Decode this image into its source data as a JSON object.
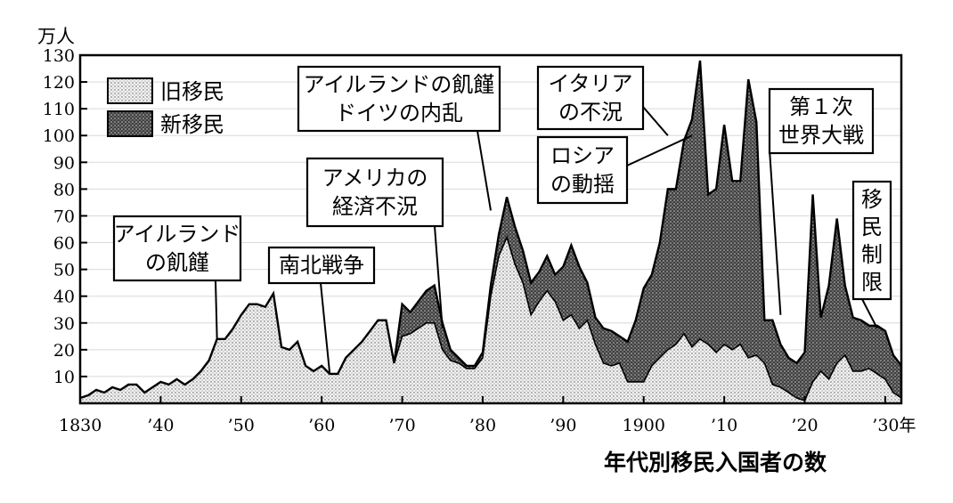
{
  "chart_data": {
    "type": "area",
    "ylabel": "万人",
    "caption": "年代別移民入国者の数",
    "ylim": [
      0,
      130
    ],
    "yticks": [
      10,
      20,
      30,
      40,
      50,
      60,
      70,
      80,
      90,
      100,
      110,
      120,
      130
    ],
    "xlim": [
      1830,
      1932
    ],
    "xticks": [
      {
        "year": 1830,
        "label": "1830"
      },
      {
        "year": 1840,
        "label": "’40"
      },
      {
        "year": 1850,
        "label": "’50"
      },
      {
        "year": 1860,
        "label": "’60"
      },
      {
        "year": 1870,
        "label": "’70"
      },
      {
        "year": 1880,
        "label": "’80"
      },
      {
        "year": 1890,
        "label": "’90"
      },
      {
        "year": 1900,
        "label": "1900"
      },
      {
        "year": 1910,
        "label": "’10"
      },
      {
        "year": 1920,
        "label": "’20"
      },
      {
        "year": 1930,
        "label": "’30年"
      }
    ],
    "grid": true,
    "legend": {
      "placement": "top-left",
      "entries": [
        {
          "name": "旧移民",
          "pattern": "light-dots"
        },
        {
          "name": "新移民",
          "pattern": "dark-dots"
        }
      ]
    },
    "series": [
      {
        "name": "旧移民",
        "x": [
          1830,
          1831,
          1832,
          1833,
          1834,
          1835,
          1836,
          1837,
          1838,
          1839,
          1840,
          1841,
          1842,
          1843,
          1844,
          1845,
          1846,
          1847,
          1848,
          1849,
          1850,
          1851,
          1852,
          1853,
          1854,
          1855,
          1856,
          1857,
          1858,
          1859,
          1860,
          1861,
          1862,
          1863,
          1864,
          1865,
          1866,
          1867,
          1868,
          1869,
          1870,
          1871,
          1872,
          1873,
          1874,
          1875,
          1876,
          1877,
          1878,
          1879,
          1880,
          1881,
          1882,
          1883,
          1884,
          1885,
          1886,
          1887,
          1888,
          1889,
          1890,
          1891,
          1892,
          1893,
          1894,
          1895,
          1896,
          1897,
          1898,
          1899,
          1900,
          1901,
          1902,
          1903,
          1904,
          1905,
          1906,
          1907,
          1908,
          1909,
          1910,
          1911,
          1912,
          1913,
          1914,
          1915,
          1916,
          1917,
          1918,
          1919,
          1920,
          1921,
          1922,
          1923,
          1924,
          1925,
          1926,
          1927,
          1928,
          1929,
          1930,
          1931,
          1932
        ],
        "values": [
          2,
          3,
          5,
          4,
          6,
          5,
          7,
          7,
          4,
          6,
          8,
          7,
          9,
          7,
          9,
          12,
          16,
          24,
          24,
          28,
          33,
          37,
          37,
          36,
          41,
          21,
          20,
          23,
          14,
          12,
          14,
          11,
          11,
          17,
          20,
          23,
          27,
          31,
          31,
          15,
          25,
          26,
          28,
          30,
          30,
          20,
          16,
          15,
          13,
          13,
          17,
          40,
          55,
          62,
          52,
          45,
          33,
          38,
          42,
          38,
          31,
          33,
          28,
          31,
          22,
          15,
          14,
          15,
          8,
          8,
          8,
          14,
          17,
          20,
          22,
          26,
          21,
          24,
          22,
          19,
          22,
          20,
          22,
          17,
          18,
          15,
          7,
          6,
          4,
          2,
          1,
          8,
          12,
          9,
          15,
          18,
          12,
          12,
          13,
          11,
          9,
          4,
          2
        ]
      },
      {
        "name": "新移民",
        "x": [
          1830,
          1831,
          1832,
          1833,
          1834,
          1835,
          1836,
          1837,
          1838,
          1839,
          1840,
          1841,
          1842,
          1843,
          1844,
          1845,
          1846,
          1847,
          1848,
          1849,
          1850,
          1851,
          1852,
          1853,
          1854,
          1855,
          1856,
          1857,
          1858,
          1859,
          1860,
          1861,
          1862,
          1863,
          1864,
          1865,
          1866,
          1867,
          1868,
          1869,
          1870,
          1871,
          1872,
          1873,
          1874,
          1875,
          1876,
          1877,
          1878,
          1879,
          1880,
          1881,
          1882,
          1883,
          1884,
          1885,
          1886,
          1887,
          1888,
          1889,
          1890,
          1891,
          1892,
          1893,
          1894,
          1895,
          1896,
          1897,
          1898,
          1899,
          1900,
          1901,
          1902,
          1903,
          1904,
          1905,
          1906,
          1907,
          1908,
          1909,
          1910,
          1911,
          1912,
          1913,
          1914,
          1915,
          1916,
          1917,
          1918,
          1919,
          1920,
          1921,
          1922,
          1923,
          1924,
          1925,
          1926,
          1927,
          1928,
          1929,
          1930,
          1931,
          1932
        ],
        "values": [
          0,
          0,
          0,
          0,
          0,
          0,
          0,
          0,
          0,
          0,
          0,
          0,
          0,
          0,
          0,
          0,
          0,
          0,
          0,
          0,
          0,
          0,
          0,
          0,
          0,
          0,
          0,
          0,
          0,
          0,
          0,
          0,
          0,
          0,
          0,
          0,
          0,
          0,
          0,
          0,
          12,
          8,
          10,
          12,
          14,
          10,
          4,
          2,
          1,
          1,
          2,
          4,
          8,
          15,
          14,
          12,
          12,
          11,
          13,
          10,
          20,
          26,
          23,
          14,
          10,
          13,
          13,
          10,
          15,
          23,
          35,
          34,
          43,
          60,
          58,
          72,
          85,
          104,
          56,
          61,
          82,
          63,
          61,
          104,
          87,
          16,
          24,
          16,
          13,
          13,
          18,
          70,
          20,
          35,
          54,
          26,
          20,
          19,
          16,
          18,
          18,
          14,
          12
        ]
      }
    ],
    "annotations": [
      {
        "lines": [
          "アイルランド",
          "の飢饉"
        ],
        "year": 1847
      },
      {
        "lines": [
          "南北戦争"
        ],
        "year": 1861
      },
      {
        "lines": [
          "アメリカの",
          "経済不況"
        ],
        "year": 1875
      },
      {
        "lines": [
          "アイルランドの飢饉",
          "ドイツの内乱"
        ],
        "year": 1881
      },
      {
        "lines": [
          "イタリア",
          "の不況"
        ],
        "year": 1903
      },
      {
        "lines": [
          "ロシア",
          "の動揺"
        ],
        "year": 1906
      },
      {
        "lines": [
          "第１次",
          "世界大戦"
        ],
        "year": 1917
      },
      {
        "lines": [
          "移",
          "民",
          "制",
          "限"
        ],
        "year": 1929
      }
    ]
  }
}
